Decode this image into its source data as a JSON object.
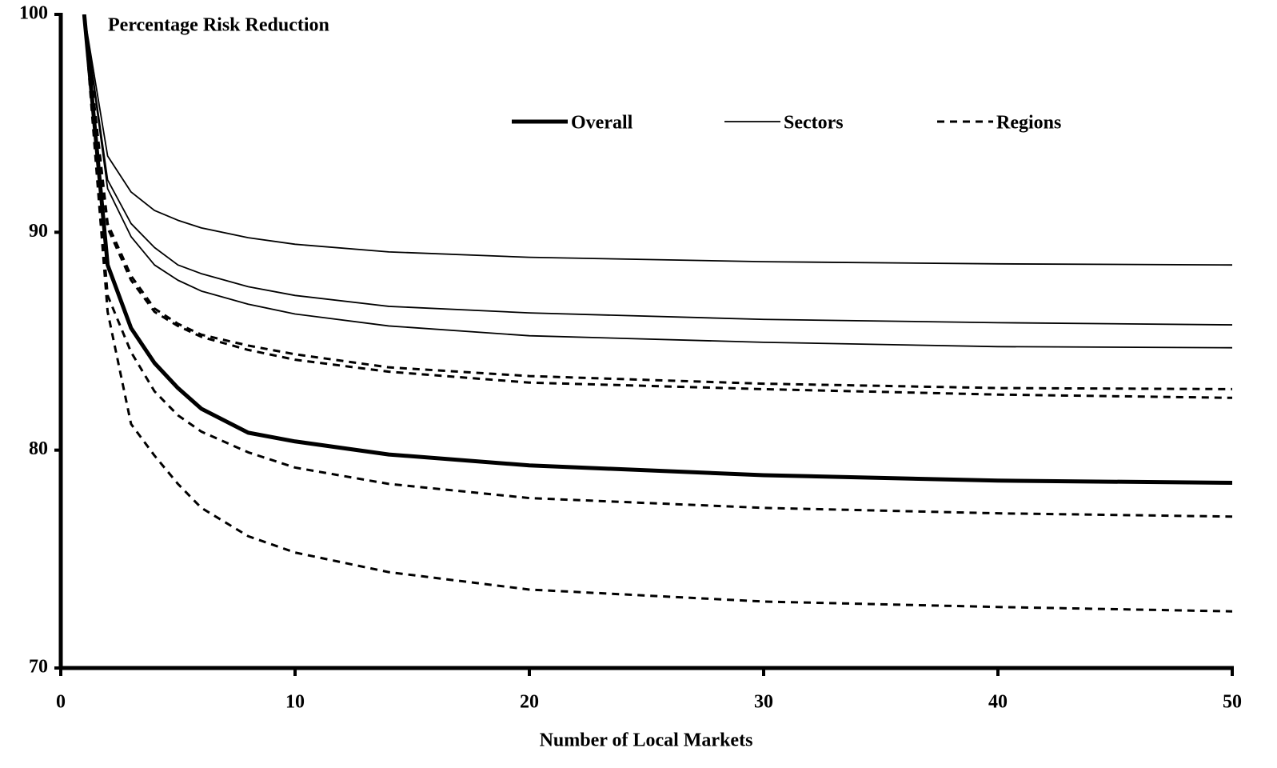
{
  "chart_data": {
    "type": "line",
    "title": "Percentage Risk Reduction",
    "xlabel": "Number of Local Markets",
    "x": [
      1,
      2,
      3,
      4,
      5,
      6,
      8,
      10,
      14,
      20,
      30,
      40,
      50
    ],
    "series": [
      {
        "name": "Overall",
        "color": "#000000",
        "width": 5,
        "dash": "none",
        "values": [
          100,
          88.5,
          85.6,
          84.0,
          82.85,
          81.9,
          80.8,
          80.4,
          79.8,
          79.3,
          78.85,
          78.6,
          78.5
        ]
      },
      {
        "name": "Sectors",
        "color": "#000000",
        "width": 1.8,
        "dash": "none",
        "values": [
          100,
          93.5,
          91.85,
          91.0,
          90.55,
          90.2,
          89.75,
          89.45,
          89.1,
          88.85,
          88.65,
          88.55,
          88.5
        ]
      },
      {
        "name": "Sectors",
        "color": "#000000",
        "width": 1.8,
        "dash": "none",
        "values": [
          100,
          92.4,
          90.4,
          89.3,
          88.5,
          88.1,
          87.5,
          87.1,
          86.6,
          86.3,
          86.0,
          85.85,
          85.75
        ]
      },
      {
        "name": "Sectors",
        "color": "#000000",
        "width": 1.8,
        "dash": "none",
        "values": [
          100,
          92.0,
          89.8,
          88.5,
          87.8,
          87.3,
          86.7,
          86.25,
          85.7,
          85.25,
          84.95,
          84.75,
          84.7
        ]
      },
      {
        "name": "Regions",
        "color": "#000000",
        "width": 3,
        "dash": "9,7",
        "values": [
          100,
          90.4,
          88.0,
          86.5,
          85.8,
          85.3,
          84.8,
          84.4,
          83.8,
          83.4,
          83.05,
          82.85,
          82.8
        ]
      },
      {
        "name": "Regions",
        "color": "#000000",
        "width": 3,
        "dash": "9,7",
        "values": [
          100,
          90.2,
          87.8,
          86.35,
          85.7,
          85.2,
          84.6,
          84.15,
          83.6,
          83.1,
          82.8,
          82.55,
          82.4
        ]
      },
      {
        "name": "Regions",
        "color": "#000000",
        "width": 3,
        "dash": "9,7",
        "values": [
          100,
          87.1,
          84.5,
          82.7,
          81.6,
          80.85,
          79.9,
          79.2,
          78.45,
          77.8,
          77.35,
          77.1,
          76.95
        ]
      },
      {
        "name": "Regions",
        "color": "#000000",
        "width": 3,
        "dash": "9,7",
        "values": [
          100,
          86.35,
          81.2,
          79.75,
          78.45,
          77.35,
          76.05,
          75.3,
          74.4,
          73.6,
          73.05,
          72.8,
          72.6
        ]
      }
    ],
    "xlim": [
      0,
      50
    ],
    "xticks": [
      0,
      10,
      20,
      30,
      40,
      50
    ],
    "ylim": [
      70,
      100
    ],
    "yticks": [
      70,
      80,
      90,
      100
    ],
    "grid": false
  }
}
